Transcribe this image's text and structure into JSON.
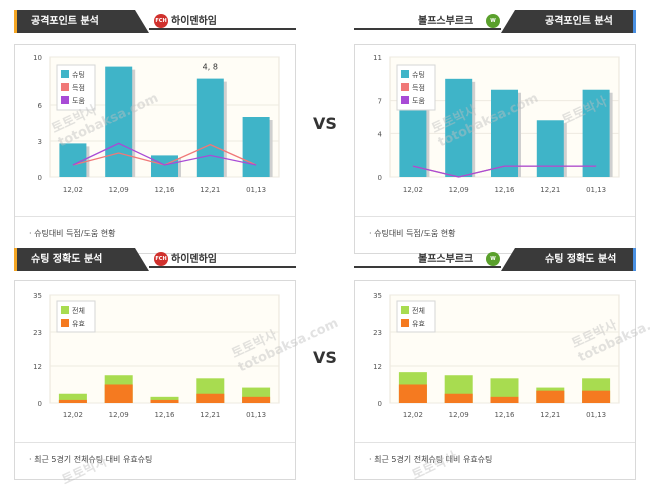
{
  "vs_label": "VS",
  "colors": {
    "shot": "#3fb4c8",
    "goal": "#f07878",
    "assist": "#a84bd6",
    "total_shot": "#a8dc50",
    "on_target": "#f57a20",
    "header_band": "#3a3a3a",
    "accent_left": "#f5a623",
    "accent_right": "#4a90e2"
  },
  "watermark": {
    "line1": "토토박사",
    "line2": "totobaksa.com"
  },
  "panels": [
    {
      "title": "공격포인트 분석",
      "team": "하이덴하임",
      "team_logo": "FCH",
      "caption": "슈팅대비 득점/도움 현황",
      "chart_data": {
        "type": "bar",
        "categories": [
          "12,02",
          "12,09",
          "12,16",
          "12,21",
          "01,13"
        ],
        "ylim": [
          0,
          10
        ],
        "yticks": [
          0,
          3,
          6,
          10
        ],
        "series": [
          {
            "name": "슈팅",
            "kind": "bar",
            "values": [
              2.8,
              9.2,
              1.8,
              8.2,
              5
            ]
          },
          {
            "name": "득점",
            "kind": "line",
            "values": [
              1,
              2,
              1,
              2.7,
              1
            ]
          },
          {
            "name": "도움",
            "kind": "line",
            "values": [
              1,
              2.8,
              1,
              1.8,
              1
            ]
          }
        ],
        "tooltip": {
          "text": "4, 8",
          "index": 3
        }
      }
    },
    {
      "title": "공격포인트 분석",
      "team": "볼프스부르크",
      "team_logo": "W",
      "caption": "슈팅대비 득점/도움 현황",
      "chart_data": {
        "type": "bar",
        "categories": [
          "12,02",
          "12,09",
          "12,16",
          "12,21",
          "01,13"
        ],
        "ylim": [
          0,
          11
        ],
        "yticks": [
          0,
          4,
          7,
          11
        ],
        "series": [
          {
            "name": "슈팅",
            "kind": "bar",
            "values": [
              8,
              9,
              8,
              5.2,
              8
            ]
          },
          {
            "name": "득점",
            "kind": "line",
            "values": [
              1,
              0,
              1,
              1,
              1
            ]
          },
          {
            "name": "도움",
            "kind": "line",
            "values": [
              1,
              0,
              1,
              1,
              1
            ]
          }
        ]
      }
    },
    {
      "title": "슈팅 정확도 분석",
      "team": "하이덴하임",
      "team_logo": "FCH",
      "caption": "최근 5경기 전체슈팅 대비 유효슈팅",
      "chart_data": {
        "type": "bar",
        "categories": [
          "12,02",
          "12,09",
          "12,16",
          "12,21",
          "01,13"
        ],
        "ylim": [
          0,
          35
        ],
        "yticks": [
          0,
          12,
          23,
          35
        ],
        "series": [
          {
            "name": "전체",
            "values": [
              3,
              9,
              2,
              8,
              5
            ]
          },
          {
            "name": "유효",
            "values": [
              1,
              6,
              1,
              3,
              2
            ]
          }
        ]
      }
    },
    {
      "title": "슈팅 정확도 분석",
      "team": "볼프스부르크",
      "team_logo": "W",
      "caption": "최근 5경기 전체슈팅 대비 유효슈팅",
      "chart_data": {
        "type": "bar",
        "categories": [
          "12,02",
          "12,09",
          "12,16",
          "12,21",
          "01,13"
        ],
        "ylim": [
          0,
          35
        ],
        "yticks": [
          0,
          12,
          23,
          35
        ],
        "series": [
          {
            "name": "전체",
            "values": [
              10,
              9,
              8,
              5,
              8
            ]
          },
          {
            "name": "유효",
            "values": [
              6,
              3,
              2,
              4,
              4
            ]
          }
        ]
      }
    }
  ]
}
